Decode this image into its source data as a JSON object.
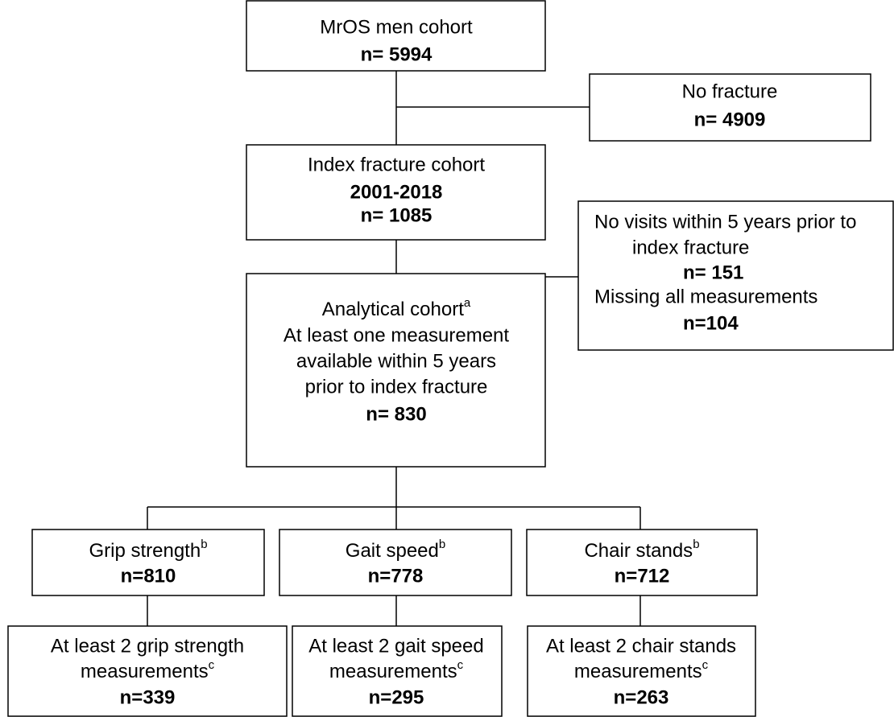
{
  "nodes": [
    {
      "label": "MrOS men cohort",
      "count": "n= 5994"
    },
    {
      "label": "No fracture",
      "count": "n= 4909"
    },
    {
      "label": "Index fracture cohort",
      "years": "2001-2018",
      "count": "n= 1085"
    },
    {
      "lines": [
        "No visits within 5 years prior to",
        "index fracture"
      ],
      "count": "n= 151",
      "label2": "Missing all measurements",
      "count2": "n=104"
    },
    {
      "label": "Analytical cohort",
      "superscript": "a",
      "lines": [
        "At least one measurement",
        "available within 5 years",
        "prior to index fracture"
      ],
      "count": "n= 830"
    },
    {
      "label": "Grip strength",
      "superscript": "b",
      "count": "n=810"
    },
    {
      "label": "Gait speed",
      "superscript": "b",
      "count": "n=778"
    },
    {
      "label": "Chair stands",
      "superscript": "b",
      "count": "n=712"
    },
    {
      "line1": "At least 2 grip strength",
      "label": "measurements",
      "superscript": "c",
      "count": "n=339"
    },
    {
      "line1": "At least 2 gait speed",
      "label": "measurements",
      "superscript": "c",
      "count": "n=295"
    },
    {
      "line1": "At least 2 chair stands",
      "label": "measurements",
      "superscript": "c",
      "count": "n=263"
    }
  ]
}
